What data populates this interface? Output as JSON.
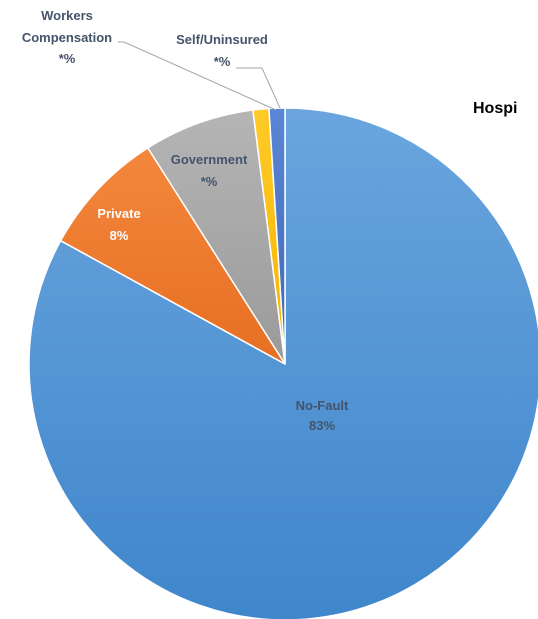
{
  "chart_data": {
    "type": "pie",
    "title": "Hospi",
    "slices": [
      {
        "name": "No-Fault",
        "value": 83,
        "value_label": "83%",
        "color": "#5b9bd5",
        "label_color": "#44546a"
      },
      {
        "name": "Private",
        "value": 8,
        "value_label": "8%",
        "color": "#ed7d31",
        "label_color": "#ffffff"
      },
      {
        "name": "Government",
        "value": 7,
        "value_label": "*%",
        "color": "#a5a5a5",
        "label_color": "#44546a"
      },
      {
        "name": "Workers Compensation",
        "name_lines": [
          "Workers",
          "Compensation"
        ],
        "value": 1,
        "value_label": "*%",
        "color": "#ffc000",
        "label_color": "#44546a"
      },
      {
        "name": "Self/Uninsured",
        "value": 1,
        "value_label": "*%",
        "color": "#4472c4",
        "label_color": "#44546a"
      }
    ],
    "legend": "none"
  }
}
